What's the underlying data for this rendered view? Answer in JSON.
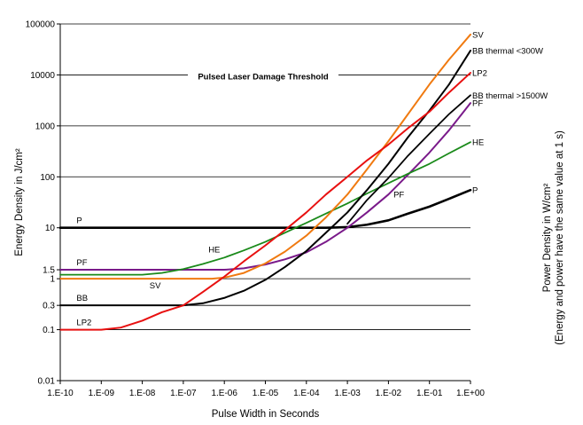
{
  "chart_data": {
    "type": "line",
    "title": "Pulsed Laser Damage Threshold",
    "xlabel": "Pulse Width in Seconds",
    "ylabel": "Energy Density in J/cm²",
    "y2label_line1": "Power Density in W/cm²",
    "y2label_line2": "(Energy and power have the same value at 1 s)",
    "x_scale": "log",
    "y_scale": "log",
    "xlim": [
      1e-10,
      1
    ],
    "ylim": [
      0.01,
      100000
    ],
    "grid": "horizontal",
    "x_ticks": [
      {
        "value": 1e-10,
        "label": "1.E-10"
      },
      {
        "value": 1e-09,
        "label": "1.E-09"
      },
      {
        "value": 1e-08,
        "label": "1.E-08"
      },
      {
        "value": 1e-07,
        "label": "1.E-07"
      },
      {
        "value": 1e-06,
        "label": "1.E-06"
      },
      {
        "value": 1e-05,
        "label": "1.E-05"
      },
      {
        "value": 0.0001,
        "label": "1.E-04"
      },
      {
        "value": 0.001,
        "label": "1.E-03"
      },
      {
        "value": 0.01,
        "label": "1.E-02"
      },
      {
        "value": 0.1,
        "label": "1.E-01"
      },
      {
        "value": 1,
        "label": "1.E+00"
      }
    ],
    "y_ticks": [
      {
        "value": 0.01,
        "label": "0.01"
      },
      {
        "value": 0.1,
        "label": "0.1"
      },
      {
        "value": 0.3,
        "label": "0.3"
      },
      {
        "value": 1,
        "label": "1"
      },
      {
        "value": 1.5,
        "label": "1.5"
      },
      {
        "value": 10,
        "label": "10"
      },
      {
        "value": 100,
        "label": "100"
      },
      {
        "value": 1000,
        "label": "1000"
      },
      {
        "value": 10000,
        "label": "10000"
      },
      {
        "value": 100000,
        "label": "100000"
      }
    ],
    "gridlines": [
      0.1,
      0.3,
      1,
      10,
      100,
      1000,
      10000,
      100000
    ],
    "series": [
      {
        "name": "P",
        "color": "#000000",
        "width": 2.6,
        "points": [
          [
            1e-10,
            10
          ],
          [
            0.0001,
            10
          ],
          [
            0.0003,
            10
          ],
          [
            0.001,
            10.3
          ],
          [
            0.003,
            11.5
          ],
          [
            0.01,
            14
          ],
          [
            0.03,
            19
          ],
          [
            0.1,
            26
          ],
          [
            0.3,
            37
          ],
          [
            1,
            55
          ]
        ],
        "labels": [
          {
            "text": "P",
            "at": [
              2.5e-10,
              10
            ],
            "pos": "above"
          },
          {
            "text": "P",
            "at": [
              1,
              55
            ],
            "pos": "right"
          }
        ]
      },
      {
        "name": "PF",
        "color": "#7a1a8a",
        "width": 2.0,
        "points": [
          [
            1e-10,
            1.5
          ],
          [
            1e-06,
            1.5
          ],
          [
            3e-06,
            1.6
          ],
          [
            1e-05,
            1.9
          ],
          [
            3e-05,
            2.4
          ],
          [
            0.0001,
            3.3
          ],
          [
            0.0003,
            5.3
          ],
          [
            0.001,
            10
          ],
          [
            0.003,
            20
          ],
          [
            0.01,
            45
          ],
          [
            0.03,
            110
          ],
          [
            0.1,
            300
          ],
          [
            0.3,
            820
          ],
          [
            1,
            2800
          ]
        ],
        "labels": [
          {
            "text": "PF",
            "at": [
              2.5e-10,
              1.5
            ],
            "pos": "above"
          },
          {
            "text": "PF",
            "at": [
              0.012,
              45
            ],
            "pos": "right"
          },
          {
            "text": "PF",
            "at": [
              1,
              2800
            ],
            "pos": "right"
          }
        ]
      },
      {
        "name": "HE",
        "color": "#1a8a1a",
        "width": 1.8,
        "points": [
          [
            1e-10,
            1.2
          ],
          [
            1e-08,
            1.2
          ],
          [
            3e-08,
            1.3
          ],
          [
            1e-07,
            1.55
          ],
          [
            3e-07,
            1.95
          ],
          [
            1e-06,
            2.6
          ],
          [
            3e-06,
            3.6
          ],
          [
            1e-05,
            5.3
          ],
          [
            3e-05,
            8
          ],
          [
            0.0001,
            12.5
          ],
          [
            0.0003,
            19
          ],
          [
            0.001,
            30
          ],
          [
            0.003,
            47
          ],
          [
            0.01,
            75
          ],
          [
            0.03,
            115
          ],
          [
            0.1,
            180
          ],
          [
            0.3,
            290
          ],
          [
            1,
            480
          ]
        ],
        "labels": [
          {
            "text": "HE",
            "at": [
              1e-06,
              2.6
            ],
            "pos": "above-left"
          },
          {
            "text": "HE",
            "at": [
              1,
              480
            ],
            "pos": "right"
          }
        ]
      },
      {
        "name": "SV",
        "color": "#f07a10",
        "width": 2.0,
        "points": [
          [
            1e-10,
            1
          ],
          [
            5e-07,
            1
          ],
          [
            1e-06,
            1.05
          ],
          [
            3e-06,
            1.3
          ],
          [
            1e-05,
            2
          ],
          [
            3e-05,
            3.4
          ],
          [
            0.0001,
            7
          ],
          [
            0.0003,
            16
          ],
          [
            0.001,
            45
          ],
          [
            0.003,
            140
          ],
          [
            0.01,
            500
          ],
          [
            0.03,
            1700
          ],
          [
            0.1,
            6500
          ],
          [
            0.3,
            20000
          ],
          [
            1,
            62000
          ]
        ],
        "labels": [
          {
            "text": "SV",
            "at": [
              1.5e-08,
              1
            ],
            "pos": "below"
          },
          {
            "text": "SV",
            "at": [
              1,
              62000
            ],
            "pos": "right"
          }
        ]
      },
      {
        "name": "BB",
        "color": "#000000",
        "width": 2.0,
        "points": [
          [
            1e-10,
            0.3
          ],
          [
            1e-07,
            0.3
          ],
          [
            3e-07,
            0.33
          ],
          [
            1e-06,
            0.42
          ],
          [
            3e-06,
            0.58
          ],
          [
            1e-05,
            0.95
          ],
          [
            3e-05,
            1.7
          ],
          [
            0.0001,
            3.5
          ],
          [
            0.0003,
            8
          ],
          [
            0.001,
            20
          ],
          [
            0.003,
            55
          ],
          [
            0.01,
            180
          ],
          [
            0.03,
            600
          ],
          [
            0.1,
            2000
          ],
          [
            0.3,
            6500
          ],
          [
            1,
            30000
          ]
        ],
        "labels": [
          {
            "text": "BB",
            "at": [
              2.5e-10,
              0.3
            ],
            "pos": "above"
          },
          {
            "text": "BB thermal <300W",
            "at": [
              1,
              30000
            ],
            "pos": "right"
          }
        ]
      },
      {
        "name": "BB thermal >1500W",
        "color": "#000000",
        "width": 1.8,
        "points": [
          [
            0.001,
            12
          ],
          [
            0.003,
            35
          ],
          [
            0.01,
            95
          ],
          [
            0.03,
            260
          ],
          [
            0.1,
            700
          ],
          [
            0.3,
            1700
          ],
          [
            1,
            4000
          ]
        ],
        "labels": [
          {
            "text": "BB thermal >1500W",
            "at": [
              1,
              4000
            ],
            "pos": "right"
          }
        ]
      },
      {
        "name": "LP2",
        "color": "#e81010",
        "width": 2.0,
        "points": [
          [
            1e-10,
            0.1
          ],
          [
            1e-09,
            0.1
          ],
          [
            3e-09,
            0.11
          ],
          [
            1e-08,
            0.15
          ],
          [
            3e-08,
            0.22
          ],
          [
            1e-07,
            0.3
          ],
          [
            3e-07,
            0.55
          ],
          [
            1e-06,
            1.1
          ],
          [
            3e-06,
            2.2
          ],
          [
            1e-05,
            4.5
          ],
          [
            3e-05,
            9
          ],
          [
            0.0001,
            20
          ],
          [
            0.0003,
            45
          ],
          [
            0.001,
            100
          ],
          [
            0.003,
            210
          ],
          [
            0.01,
            430
          ],
          [
            0.03,
            900
          ],
          [
            0.1,
            1900
          ],
          [
            0.3,
            4500
          ],
          [
            1,
            11000
          ]
        ],
        "labels": [
          {
            "text": "LP2",
            "at": [
              2.5e-10,
              0.1
            ],
            "pos": "above"
          },
          {
            "text": "LP2",
            "at": [
              1,
              11000
            ],
            "pos": "right"
          }
        ]
      }
    ]
  }
}
